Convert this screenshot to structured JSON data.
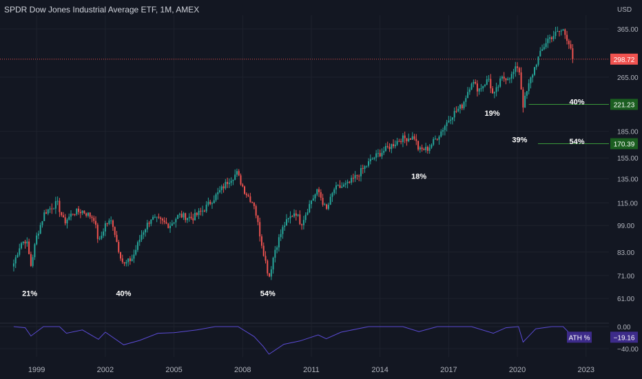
{
  "header": {
    "title": "SPDR Dow Jones Industrial Average ETF, 1M, AMEX"
  },
  "chart_data": [
    {
      "type": "candlestick",
      "title": "SPDR Dow Jones Industrial Average ETF, 1M, AMEX",
      "currency": "USD",
      "y_scale": "log",
      "ylim": [
        52,
        400
      ],
      "xlim": [
        1997.4,
        2024.0
      ],
      "y_ticks": [
        365,
        265,
        185,
        155,
        135,
        115,
        99,
        83,
        71,
        61
      ],
      "x_ticks": [
        {
          "x": 1999,
          "label": "1999"
        },
        {
          "x": 2002,
          "label": "2002"
        },
        {
          "x": 2005,
          "label": "2005"
        },
        {
          "x": 2008,
          "label": "2008"
        },
        {
          "x": 2011,
          "label": "2011"
        },
        {
          "x": 2014,
          "label": "2014"
        },
        {
          "x": 2017,
          "label": "2017"
        },
        {
          "x": 2020,
          "label": "2020"
        },
        {
          "x": 2023,
          "label": "2023"
        }
      ],
      "up_color": "#26a69a",
      "down_color": "#ef5350",
      "last_price": {
        "value": 298.72,
        "label": "298.72",
        "color": "#f05350"
      },
      "price_path": [
        [
          1998.0,
          77
        ],
        [
          1998.3,
          88
        ],
        [
          1998.55,
          90
        ],
        [
          1998.75,
          76
        ],
        [
          1999.0,
          92
        ],
        [
          1999.35,
          108
        ],
        [
          1999.9,
          115
        ],
        [
          2000.2,
          101
        ],
        [
          2000.6,
          108
        ],
        [
          2001.0,
          109
        ],
        [
          2001.5,
          104
        ],
        [
          2001.72,
          88
        ],
        [
          2002.0,
          100
        ],
        [
          2002.3,
          102
        ],
        [
          2002.55,
          86
        ],
        [
          2002.8,
          76
        ],
        [
          2003.2,
          80
        ],
        [
          2003.6,
          94
        ],
        [
          2004.0,
          104
        ],
        [
          2004.4,
          102
        ],
        [
          2004.8,
          99
        ],
        [
          2005.2,
          106
        ],
        [
          2005.8,
          104
        ],
        [
          2006.3,
          110
        ],
        [
          2006.9,
          122
        ],
        [
          2007.4,
          134
        ],
        [
          2007.75,
          140
        ],
        [
          2008.1,
          124
        ],
        [
          2008.5,
          114
        ],
        [
          2008.8,
          90
        ],
        [
          2009.15,
          70
        ],
        [
          2009.4,
          84
        ],
        [
          2009.8,
          99
        ],
        [
          2010.3,
          109
        ],
        [
          2010.55,
          100
        ],
        [
          2011.0,
          117
        ],
        [
          2011.3,
          125
        ],
        [
          2011.65,
          109
        ],
        [
          2012.0,
          126
        ],
        [
          2012.6,
          130
        ],
        [
          2013.0,
          138
        ],
        [
          2013.7,
          155
        ],
        [
          2014.3,
          165
        ],
        [
          2014.9,
          176
        ],
        [
          2015.5,
          178
        ],
        [
          2015.7,
          163
        ],
        [
          2016.1,
          165
        ],
        [
          2016.6,
          182
        ],
        [
          2017.1,
          205
        ],
        [
          2017.6,
          220
        ],
        [
          2018.0,
          258
        ],
        [
          2018.3,
          244
        ],
        [
          2018.75,
          262
        ],
        [
          2018.95,
          232
        ],
        [
          2019.3,
          262
        ],
        [
          2019.75,
          268
        ],
        [
          2020.05,
          288
        ],
        [
          2020.25,
          220
        ],
        [
          2020.55,
          258
        ],
        [
          2020.85,
          295
        ],
        [
          2021.3,
          340
        ],
        [
          2021.8,
          358
        ],
        [
          2022.0,
          362
        ],
        [
          2022.3,
          330
        ],
        [
          2022.45,
          298.72
        ]
      ],
      "annotations": [
        {
          "label": "21%",
          "x": 1998.7,
          "y": 62
        },
        {
          "label": "40%",
          "x": 2002.8,
          "y": 62
        },
        {
          "label": "54%",
          "x": 2009.1,
          "y": 62
        },
        {
          "label": "18%",
          "x": 2015.7,
          "y": 135
        },
        {
          "label": "19%",
          "x": 2018.9,
          "y": 205
        },
        {
          "label": "39%",
          "x": 2020.1,
          "y": 172
        },
        {
          "label": "40%",
          "x": 2022.6,
          "y": 221
        },
        {
          "label": "54%",
          "x": 2022.6,
          "y": 170
        }
      ],
      "levels": [
        {
          "value": 221.23,
          "label": "221.23",
          "from_x": 2020.5
        },
        {
          "value": 170.39,
          "label": "170.39",
          "from_x": 2020.9
        }
      ]
    },
    {
      "type": "line",
      "name": "ATH %",
      "ylim": [
        -55,
        5
      ],
      "y_ticks": [
        {
          "value": 0,
          "label": "0.00"
        },
        {
          "value": -40,
          "label": "−40.00"
        }
      ],
      "color": "#5b4bd6",
      "last_value": {
        "value": -19.16,
        "label": "−19.16"
      },
      "x": [
        1998.0,
        1998.5,
        1998.75,
        1999.3,
        2000.0,
        2000.3,
        2001.0,
        2001.7,
        2002.0,
        2002.8,
        2003.5,
        2004.3,
        2005.0,
        2006.0,
        2006.8,
        2007.8,
        2008.5,
        2008.9,
        2009.15,
        2009.8,
        2010.5,
        2011.3,
        2011.65,
        2012.3,
        2013.5,
        2015.0,
        2015.7,
        2016.5,
        2018.0,
        2018.95,
        2019.5,
        2020.05,
        2020.25,
        2020.8,
        2021.5,
        2022.0,
        2022.45
      ],
      "y": [
        0,
        -2,
        -17,
        0,
        0,
        -12,
        -6,
        -23,
        -10,
        -33,
        -25,
        -12,
        -11,
        -6,
        0,
        0,
        -18,
        -36,
        -50,
        -32,
        -26,
        -15,
        -22,
        -10,
        0,
        0,
        -9,
        0,
        0,
        -12,
        -2,
        0,
        -28,
        -4,
        0,
        0,
        -19.16
      ]
    }
  ]
}
